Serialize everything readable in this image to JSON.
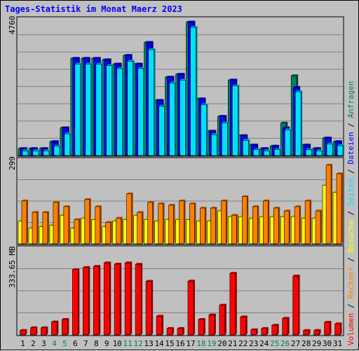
{
  "chart_data": {
    "type": "bar",
    "title": "Tages-Statistik im Monat Maerz 2023",
    "categories": [
      "1",
      "2",
      "3",
      "4",
      "5",
      "6",
      "7",
      "8",
      "9",
      "10",
      "11",
      "12",
      "13",
      "14",
      "15",
      "16",
      "17",
      "18",
      "19",
      "20",
      "21",
      "22",
      "23",
      "24",
      "25",
      "26",
      "27",
      "28",
      "29",
      "30",
      "31"
    ],
    "weekend_days": [
      "4",
      "5",
      "11",
      "12",
      "18",
      "19",
      "25",
      "26"
    ],
    "panels": [
      {
        "id": "top",
        "ymax_label": "4760",
        "ylim": [
          0,
          4760
        ],
        "series": [
          {
            "name": "Anfragen",
            "color": "#008060",
            "values": [
              238,
              238,
              238,
              477,
              954,
              3350,
              3350,
              3350,
              3300,
              3150,
              3450,
              3150,
              3900,
              1900,
              2700,
              2800,
              4600,
              1950,
              838,
              1350,
              2600,
              683,
              360,
              238,
              320,
              1120,
              2750,
              360,
              238,
              600,
              477
            ]
          },
          {
            "name": "Dateien",
            "color": "#0000ff",
            "values": [
              238,
              238,
              238,
              477,
              954,
              3350,
              3350,
              3350,
              3300,
              3150,
              3450,
              3150,
              3900,
              1900,
              2700,
              2800,
              4600,
              1950,
              838,
              1350,
              2600,
              683,
              360,
              238,
              320,
              954,
              2350,
              360,
              238,
              600,
              477
            ]
          },
          {
            "name": "Seiten",
            "color": "#00e0ff",
            "values": [
              160,
              160,
              160,
              320,
              745,
              3150,
              3150,
              3150,
              3100,
              3000,
              3250,
              3000,
              3650,
              1700,
              2500,
              2600,
              4420,
              1750,
              720,
              1120,
              2400,
              520,
              200,
              160,
              200,
              880,
              2200,
              200,
              160,
              400,
              340
            ]
          }
        ]
      },
      {
        "id": "middle",
        "ymax_label": "299",
        "ylim": [
          0,
          299
        ],
        "series": [
          {
            "name": "Besuche",
            "color": "#ffff00",
            "values": [
              80,
              55,
              60,
              65,
              100,
              55,
              90,
              85,
              60,
              80,
              85,
              100,
              85,
              80,
              85,
              85,
              85,
              80,
              80,
              115,
              95,
              95,
              90,
              95,
              95,
              95,
              95,
              90,
              90,
              205,
              180
            ]
          },
          {
            "name": "Rechner",
            "color": "#ff8000",
            "values": [
              150,
              110,
              110,
              145,
              130,
              85,
              155,
              130,
              75,
              90,
              175,
              110,
              145,
              140,
              135,
              150,
              140,
              125,
              125,
              150,
              100,
              165,
              130,
              150,
              125,
              115,
              130,
              150,
              115,
              275,
              245
            ]
          }
        ]
      },
      {
        "id": "bottom",
        "ymax_label": "333.65 MB",
        "ylim": [
          0,
          384
        ],
        "series": [
          {
            "name": "Volumen",
            "color": "#ff0000",
            "values": [
              19,
              31,
              31,
              56,
              67,
              284,
              293,
              298,
              313,
              308,
              313,
              307,
              233,
              81,
              28,
              28,
              234,
              67,
              87,
              129,
              268,
              78,
              22,
              28,
              42,
              72,
              256,
              19,
              19,
              55,
              48
            ]
          }
        ]
      }
    ],
    "legend": [
      "Volumen",
      "Rechner",
      "Besuche",
      "Seiten",
      "Dateien",
      "Anfragen"
    ],
    "legend_colors": [
      "#ff0000",
      "#ff8000",
      "#ffff00",
      "#00e0ff",
      "#0000ff",
      "#008060"
    ]
  }
}
